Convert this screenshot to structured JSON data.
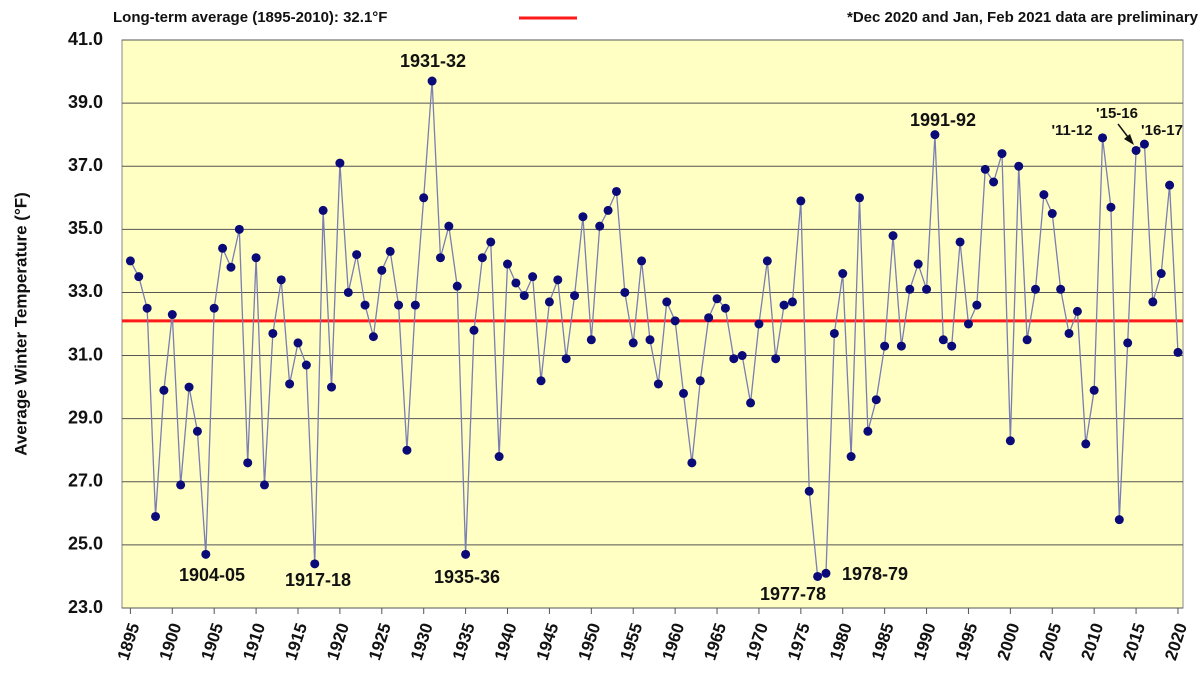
{
  "chart_data": {
    "type": "line",
    "legend_label": "Long-term average (1895-2010): 32.1°F",
    "note": "*Dec 2020 and Jan, Feb 2021 data are preliminary",
    "ylabel": "Average Winter Temperature (°F)",
    "average": 32.1,
    "average_color": "#ff1a1a",
    "x": [
      1895,
      1896,
      1897,
      1898,
      1899,
      1900,
      1901,
      1902,
      1903,
      1904,
      1905,
      1906,
      1907,
      1908,
      1909,
      1910,
      1911,
      1912,
      1913,
      1914,
      1915,
      1916,
      1917,
      1918,
      1919,
      1920,
      1921,
      1922,
      1923,
      1924,
      1925,
      1926,
      1927,
      1928,
      1929,
      1930,
      1931,
      1932,
      1933,
      1934,
      1935,
      1936,
      1937,
      1938,
      1939,
      1940,
      1941,
      1942,
      1943,
      1944,
      1945,
      1946,
      1947,
      1948,
      1949,
      1950,
      1951,
      1952,
      1953,
      1954,
      1955,
      1956,
      1957,
      1958,
      1959,
      1960,
      1961,
      1962,
      1963,
      1964,
      1965,
      1966,
      1967,
      1968,
      1969,
      1970,
      1971,
      1972,
      1973,
      1974,
      1975,
      1976,
      1977,
      1978,
      1979,
      1980,
      1981,
      1982,
      1983,
      1984,
      1985,
      1986,
      1987,
      1988,
      1989,
      1990,
      1991,
      1992,
      1993,
      1994,
      1995,
      1996,
      1997,
      1998,
      1999,
      2000,
      2001,
      2002,
      2003,
      2004,
      2005,
      2006,
      2007,
      2008,
      2009,
      2010,
      2011,
      2012,
      2013,
      2014,
      2015,
      2016,
      2017,
      2018,
      2019,
      2020
    ],
    "series": [
      {
        "name": "Average Winter Temperature",
        "color": "#7a7eb2",
        "marker_color": "#0a0a78",
        "values": [
          34.0,
          33.5,
          32.5,
          25.9,
          29.9,
          32.3,
          26.9,
          30.0,
          28.6,
          24.7,
          32.5,
          34.4,
          33.8,
          35.0,
          27.6,
          34.1,
          26.9,
          31.7,
          33.4,
          30.1,
          31.4,
          30.7,
          24.4,
          35.6,
          30.0,
          37.1,
          33.0,
          34.2,
          32.6,
          31.6,
          33.7,
          34.3,
          32.6,
          28.0,
          32.6,
          36.0,
          39.7,
          34.1,
          35.1,
          33.2,
          24.7,
          31.8,
          34.1,
          34.6,
          27.8,
          33.9,
          33.3,
          32.9,
          33.5,
          30.2,
          32.7,
          33.4,
          30.9,
          32.9,
          35.4,
          31.5,
          35.1,
          35.6,
          36.2,
          33.0,
          31.4,
          34.0,
          31.5,
          30.1,
          32.7,
          32.1,
          29.8,
          27.6,
          30.2,
          32.2,
          32.8,
          32.5,
          30.9,
          31.0,
          29.5,
          32.0,
          34.0,
          30.9,
          32.6,
          32.7,
          35.9,
          26.7,
          24.0,
          24.1,
          31.7,
          33.6,
          27.8,
          36.0,
          28.6,
          29.6,
          31.3,
          34.8,
          31.3,
          33.1,
          33.9,
          33.1,
          38.0,
          31.5,
          31.3,
          34.6,
          32.0,
          32.6,
          36.9,
          36.5,
          37.4,
          28.3,
          37.0,
          31.5,
          33.1,
          36.1,
          35.5,
          33.1,
          31.7,
          32.4,
          28.2,
          29.9,
          37.9,
          35.7,
          25.8,
          31.4,
          37.5,
          37.7,
          32.7,
          33.6,
          36.4,
          31.1
        ]
      }
    ],
    "annotations": [
      "1931-32",
      "1904-05",
      "1917-18",
      "1935-36",
      "1977-78",
      "1978-79",
      "1991-92",
      "'11-12",
      "'15-16",
      "'16-17"
    ],
    "xlim": [
      1894,
      2020.6
    ],
    "xticks": [
      1895,
      1900,
      1905,
      1910,
      1915,
      1920,
      1925,
      1930,
      1935,
      1940,
      1945,
      1950,
      1955,
      1960,
      1965,
      1970,
      1975,
      1980,
      1985,
      1990,
      1995,
      2000,
      2005,
      2010,
      2015,
      2020
    ],
    "ylim": [
      23,
      41
    ],
    "yticks": [
      {
        "value": 23,
        "label": "23.0"
      },
      {
        "value": 25,
        "label": "25.0"
      },
      {
        "value": 27,
        "label": "27.0"
      },
      {
        "value": 29,
        "label": "29.0"
      },
      {
        "value": 31,
        "label": "31.0"
      },
      {
        "value": 33,
        "label": "33.0"
      },
      {
        "value": 35,
        "label": "35.0"
      },
      {
        "value": 37,
        "label": "37.0"
      },
      {
        "value": 39,
        "label": "39.0"
      },
      {
        "value": 41,
        "label": "41.0"
      }
    ],
    "grid": true,
    "plot_background": "#ffffc4"
  }
}
